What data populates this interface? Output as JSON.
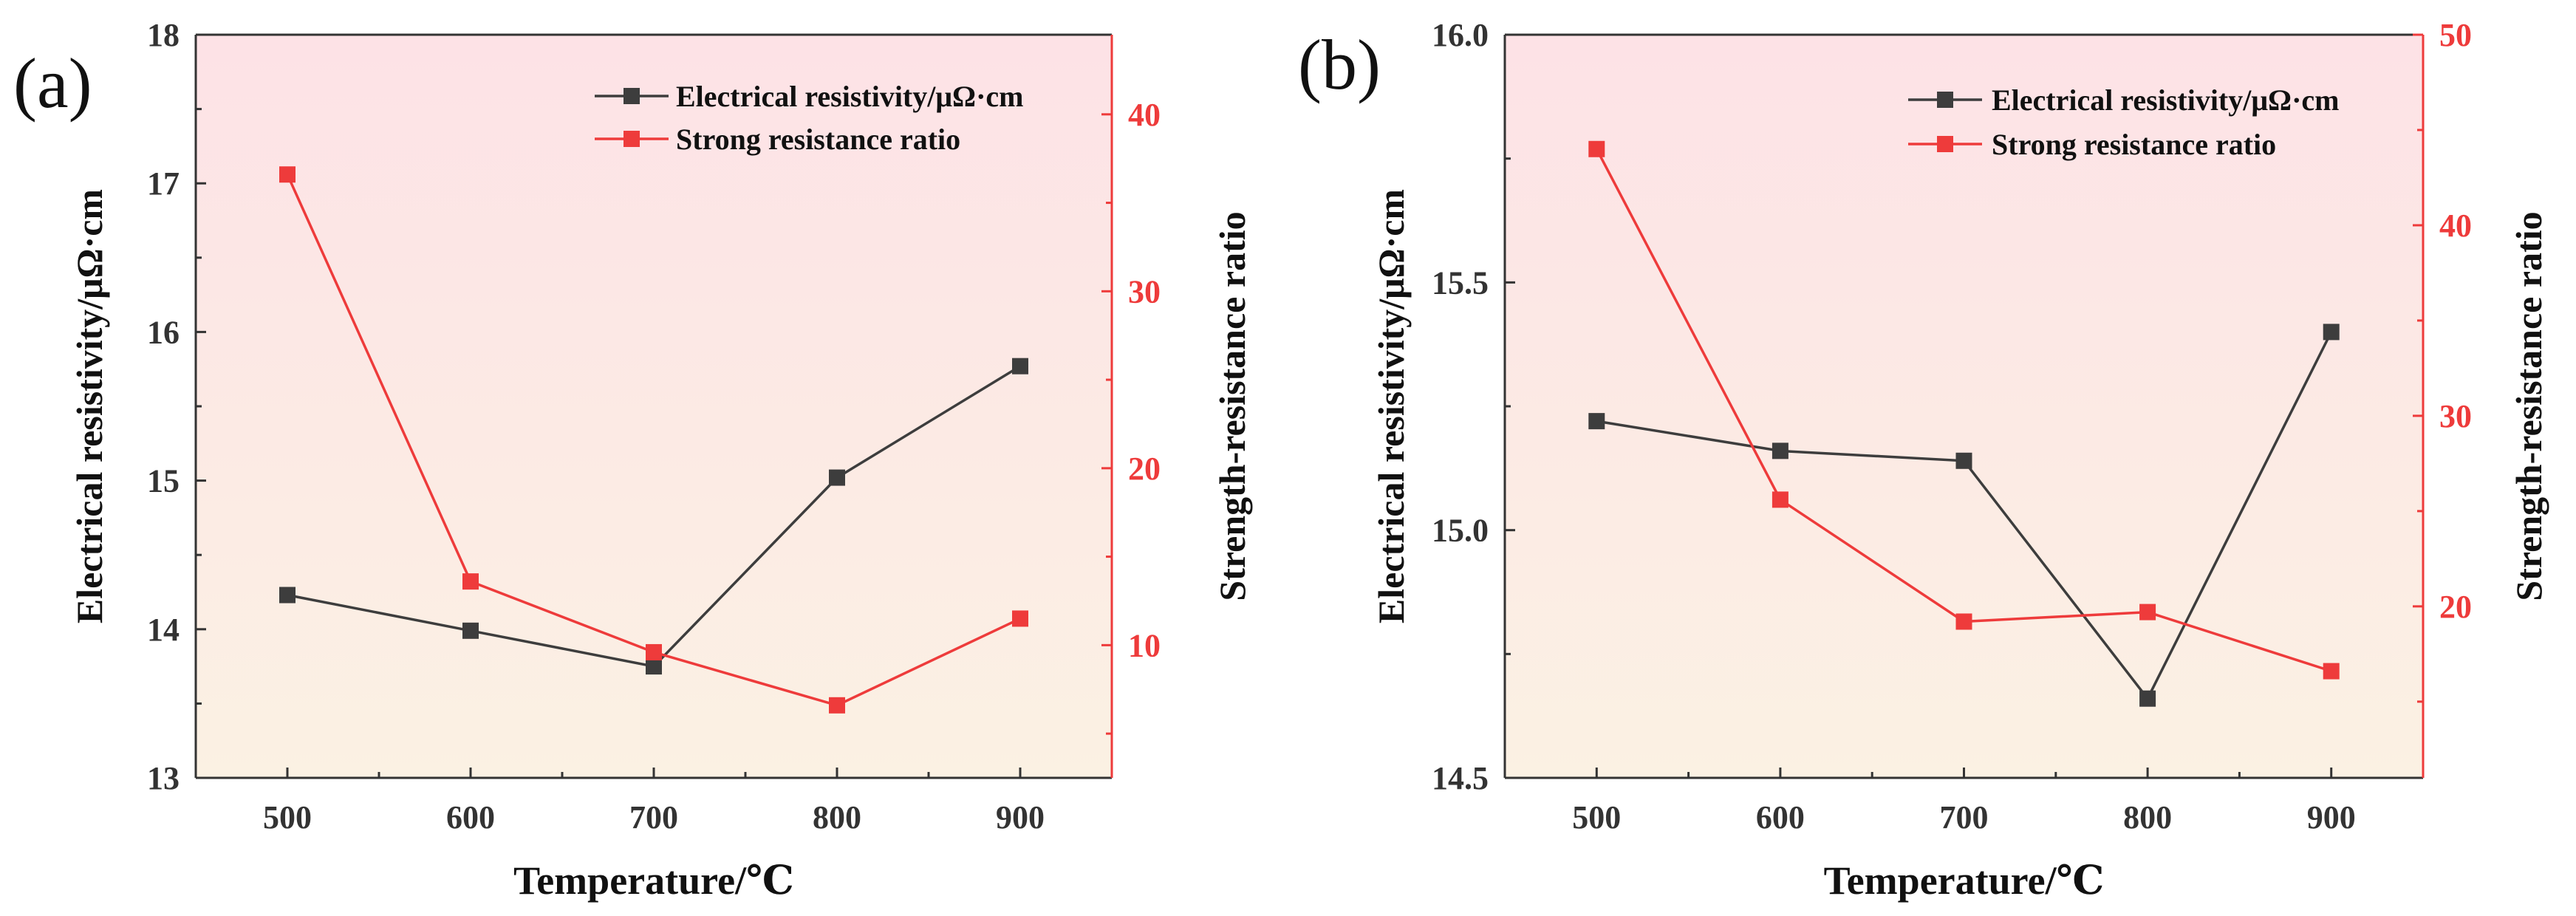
{
  "colors": {
    "black_series": "#3d3d3d",
    "red_series": "#ee3b3b",
    "axis_black": "#333333",
    "axis_red": "#ee3b3b",
    "bg_top": "#fde2e6",
    "bg_bottom": "#fbf1e3"
  },
  "chart_data": [
    {
      "type": "line",
      "panel_label": "(a)",
      "xlabel": "Temperature/℃",
      "ylabel_left": "Electrical resistivity/μΩ·cm",
      "ylabel_right": "Strength-resistance ratio",
      "x": [
        500,
        600,
        700,
        800,
        900
      ],
      "x_tick_labels": [
        "500",
        "600",
        "700",
        "800",
        "900"
      ],
      "xlim": [
        450,
        950
      ],
      "ylim_left": [
        13,
        18
      ],
      "y_left_tick_labels": [
        "13",
        "14",
        "15",
        "16",
        "17",
        "18"
      ],
      "ylim_right": [
        2.5,
        44.5
      ],
      "y_right_tick_labels": [
        "10",
        "20",
        "30",
        "40"
      ],
      "series": [
        {
          "name": "Electrical resistivity/μΩ·cm",
          "axis": "left",
          "color": "#3d3d3d",
          "values": [
            14.23,
            13.99,
            13.75,
            15.02,
            15.77
          ]
        },
        {
          "name": "Strong resistance ratio",
          "axis": "right",
          "color": "#ee3b3b",
          "values": [
            36.6,
            13.6,
            9.6,
            6.6,
            11.5
          ]
        }
      ],
      "legend_position": "top-right"
    },
    {
      "type": "line",
      "panel_label": "(b)",
      "xlabel": "Temperature/℃",
      "ylabel_left": "Electrical resistivity/μΩ·cm",
      "ylabel_right": "Strength-resistance ratio",
      "x": [
        500,
        600,
        700,
        800,
        900
      ],
      "x_tick_labels": [
        "500",
        "600",
        "700",
        "800",
        "900"
      ],
      "xlim": [
        450,
        950
      ],
      "ylim_left": [
        14.5,
        16.0
      ],
      "y_left_tick_labels": [
        "14.5",
        "15.0",
        "15.5",
        "16.0"
      ],
      "ylim_right": [
        11,
        50
      ],
      "y_right_tick_labels": [
        "20",
        "30",
        "40",
        "50"
      ],
      "series": [
        {
          "name": "Electrical resistivity/μΩ·cm",
          "axis": "left",
          "color": "#3d3d3d",
          "values": [
            15.22,
            15.16,
            15.14,
            14.66,
            15.4
          ]
        },
        {
          "name": "Strong resistance ratio",
          "axis": "right",
          "color": "#ee3b3b",
          "values": [
            44.0,
            25.6,
            19.2,
            19.7,
            16.6
          ]
        }
      ],
      "legend_position": "top-right"
    }
  ]
}
